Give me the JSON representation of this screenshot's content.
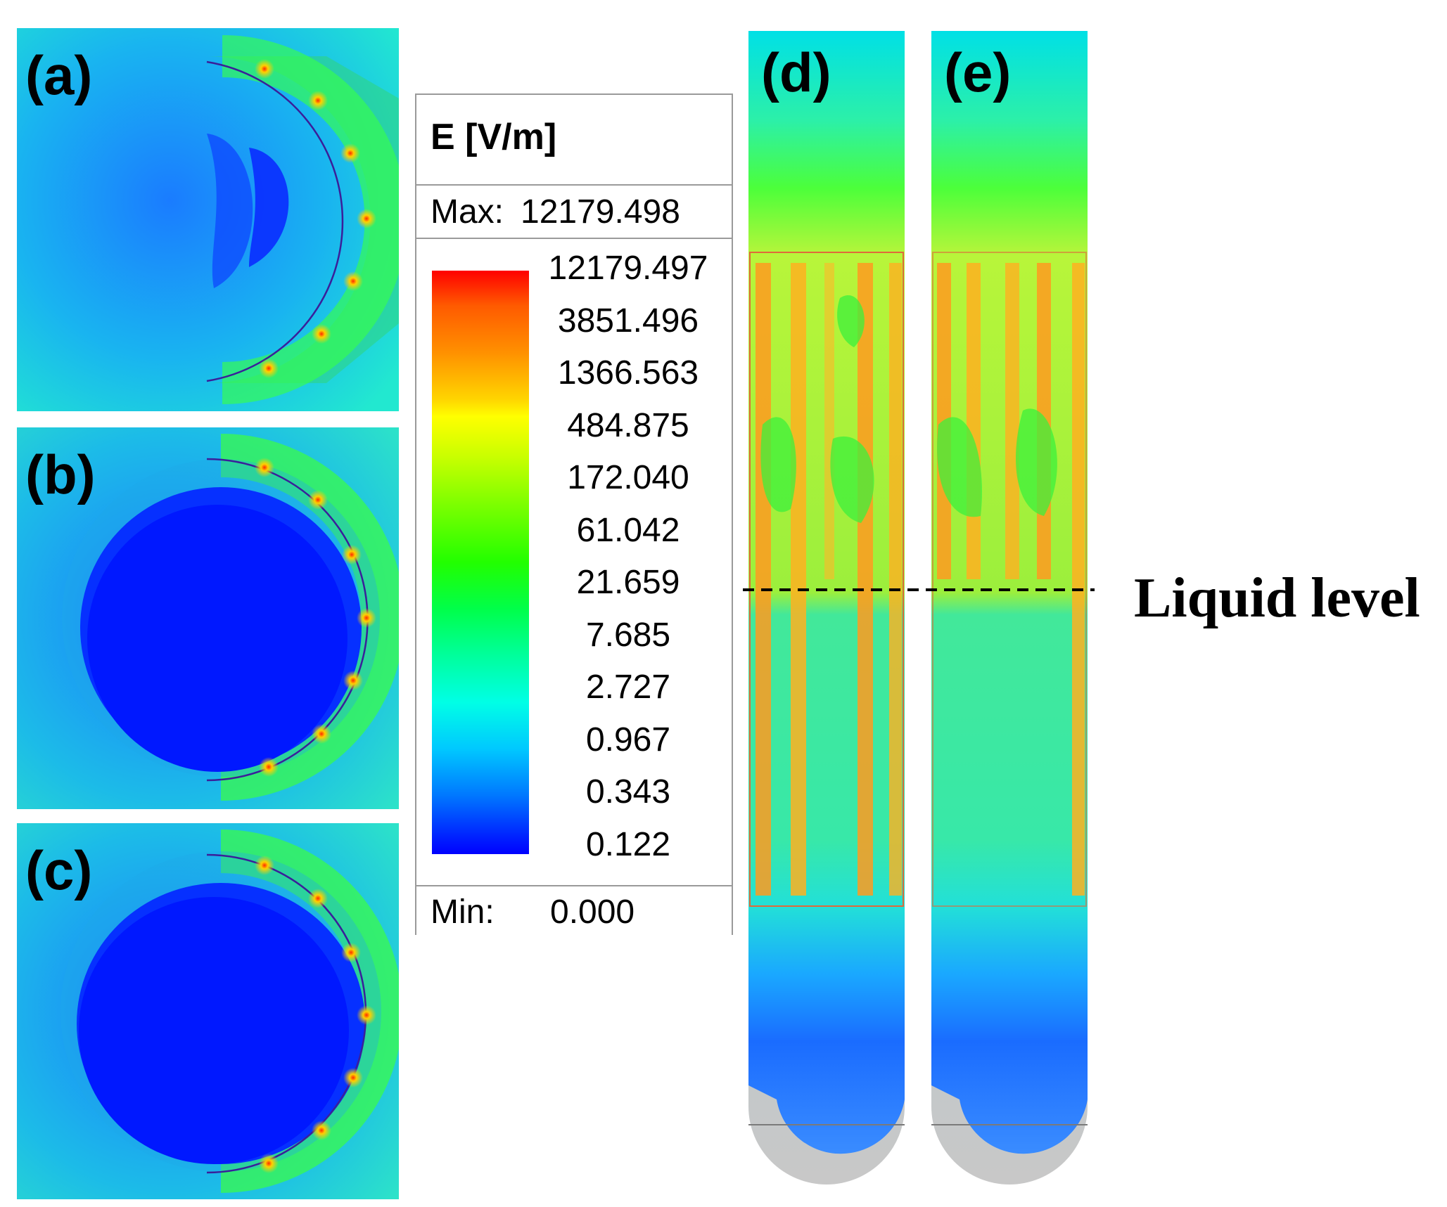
{
  "panels": {
    "a": "(a)",
    "b": "(b)",
    "c": "(c)",
    "d": "(d)",
    "e": "(e)"
  },
  "legend": {
    "title": "E [V/m]",
    "max_label": "Max:",
    "max_value": "12179.498",
    "min_label": "Min:",
    "min_value": "0.000",
    "ticks": [
      "12179.497",
      "3851.496",
      "1366.563",
      "484.875",
      "172.040",
      "61.042",
      "21.659",
      "7.685",
      "2.727",
      "0.967",
      "0.343",
      "0.122"
    ],
    "colorbar_colors": [
      "#ff0000",
      "#ff9000",
      "#ffff00",
      "#22ff00",
      "#00ffe6",
      "#0077ff",
      "#0000ff"
    ]
  },
  "annotation": {
    "liquid_level": "Liquid level"
  }
}
